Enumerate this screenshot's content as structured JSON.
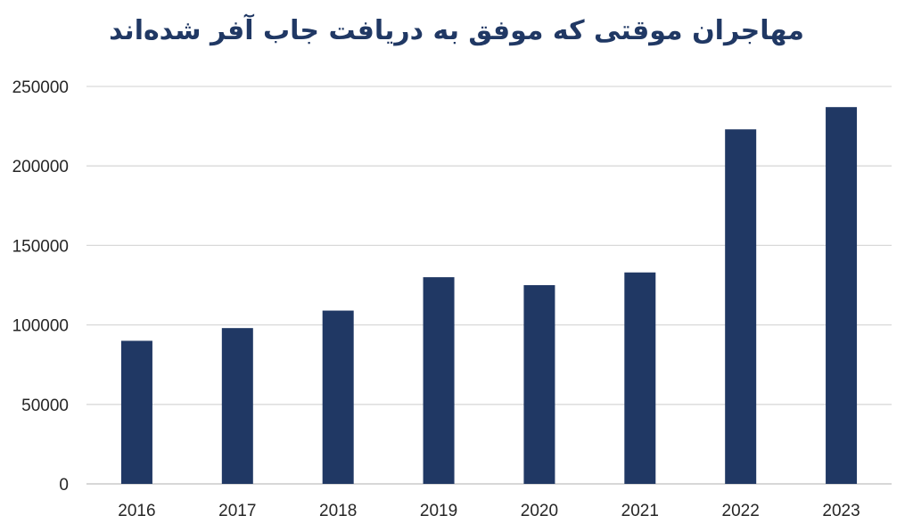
{
  "chart_data": {
    "type": "bar",
    "title": "مهاجران موقتی که موفق به دریافت جاب آفر شده‌اند",
    "xlabel": "",
    "ylabel": "",
    "categories": [
      "2016",
      "2017",
      "2018",
      "2019",
      "2020",
      "2021",
      "2022",
      "2023"
    ],
    "values": [
      90000,
      98000,
      109000,
      130000,
      125000,
      133000,
      223000,
      237000
    ],
    "ylim": [
      0,
      250000
    ],
    "yticks": [
      0,
      50000,
      100000,
      150000,
      200000,
      250000
    ],
    "ytick_labels": [
      "0",
      "50000",
      "100000",
      "150000",
      "200000",
      "250000"
    ],
    "grid": true,
    "legend": "none",
    "bar_color": "#203864",
    "title_color": "#203864"
  }
}
